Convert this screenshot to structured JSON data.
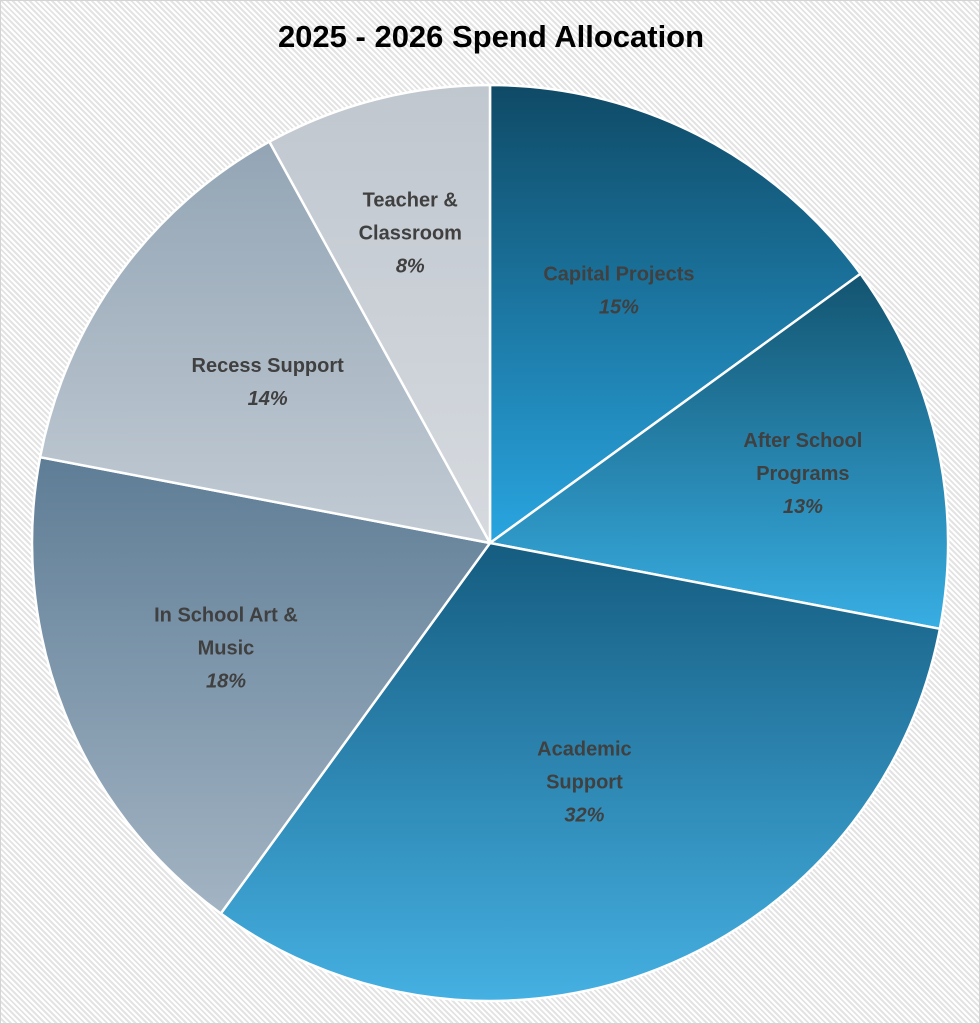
{
  "chart_data": {
    "type": "pie",
    "title": "2025 - 2026 Spend Allocation",
    "start": "top",
    "direction": "clockwise",
    "slices": [
      {
        "label": "Capital Projects",
        "label_lines": [
          "Capital Projects"
        ],
        "value": 15,
        "value_label": "15%",
        "color_top": "#0f4a66",
        "color_bottom": "#29a5e0"
      },
      {
        "label": "After School Programs",
        "label_lines": [
          "After School",
          "Programs"
        ],
        "value": 13,
        "value_label": "13%",
        "color_top": "#135470",
        "color_bottom": "#38aee3"
      },
      {
        "label": "Academic Support",
        "label_lines": [
          "Academic",
          "Support"
        ],
        "value": 32,
        "value_label": "32%",
        "color_top": "#155c80",
        "color_bottom": "#45b0e2"
      },
      {
        "label": "In School Art & Music",
        "label_lines": [
          "In School Art &",
          "Music"
        ],
        "value": 18,
        "value_label": "18%",
        "color_top": "#5e7d96",
        "color_bottom": "#a3b4c3"
      },
      {
        "label": "Recess Support",
        "label_lines": [
          "Recess Support"
        ],
        "value": 14,
        "value_label": "14%",
        "color_top": "#93a5b5",
        "color_bottom": "#c2cbd4"
      },
      {
        "label": "Teacher & Classroom",
        "label_lines": [
          "Teacher &",
          "Classroom"
        ],
        "value": 8,
        "value_label": "8%",
        "color_top": "#c0c7cf",
        "color_bottom": "#d6dadf"
      }
    ],
    "legend": "none"
  }
}
